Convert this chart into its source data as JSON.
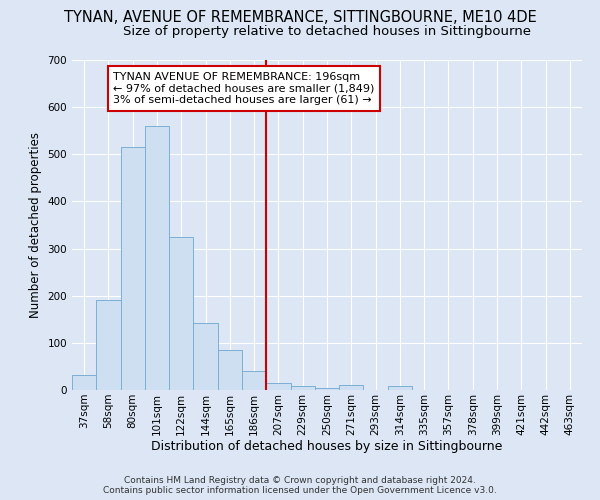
{
  "title": "TYNAN, AVENUE OF REMEMBRANCE, SITTINGBOURNE, ME10 4DE",
  "subtitle": "Size of property relative to detached houses in Sittingbourne",
  "xlabel": "Distribution of detached houses by size in Sittingbourne",
  "ylabel": "Number of detached properties",
  "categories": [
    "37sqm",
    "58sqm",
    "80sqm",
    "101sqm",
    "122sqm",
    "144sqm",
    "165sqm",
    "186sqm",
    "207sqm",
    "229sqm",
    "250sqm",
    "271sqm",
    "293sqm",
    "314sqm",
    "335sqm",
    "357sqm",
    "378sqm",
    "399sqm",
    "421sqm",
    "442sqm",
    "463sqm"
  ],
  "values": [
    32,
    190,
    515,
    560,
    325,
    143,
    85,
    40,
    14,
    8,
    5,
    10,
    0,
    8,
    0,
    0,
    0,
    0,
    0,
    0,
    0
  ],
  "bar_color": "#cddff0",
  "bar_edge_color": "#7aafd4",
  "vline_x": 7.5,
  "vline_color": "#cc0000",
  "annotation_text": "TYNAN AVENUE OF REMEMBRANCE: 196sqm\n← 97% of detached houses are smaller (1,849)\n3% of semi-detached houses are larger (61) →",
  "annotation_box_facecolor": "#ffffff",
  "annotation_box_edgecolor": "#cc0000",
  "ylim": [
    0,
    700
  ],
  "yticks": [
    0,
    100,
    200,
    300,
    400,
    500,
    600,
    700
  ],
  "background_color": "#dce6f5",
  "plot_bg_color": "#dce6f5",
  "footer_line1": "Contains HM Land Registry data © Crown copyright and database right 2024.",
  "footer_line2": "Contains public sector information licensed under the Open Government Licence v3.0.",
  "title_fontsize": 10.5,
  "subtitle_fontsize": 9.5,
  "xlabel_fontsize": 9,
  "ylabel_fontsize": 8.5,
  "tick_fontsize": 7.5,
  "annotation_fontsize": 8,
  "footer_fontsize": 6.5
}
